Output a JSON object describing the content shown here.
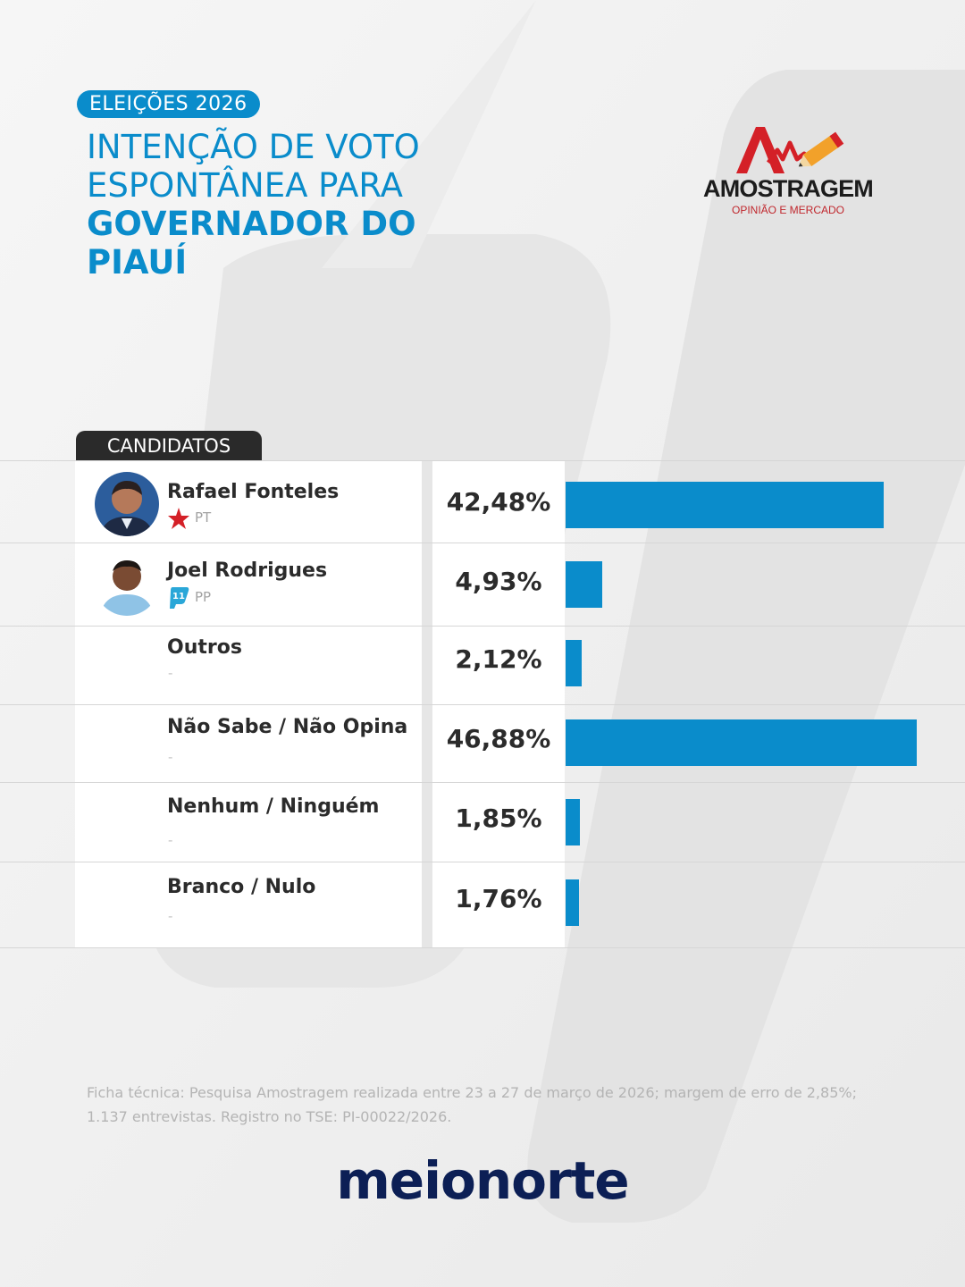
{
  "badge": "ELEIÇÕES 2026",
  "title": {
    "line1": "INTENÇÃO DE VOTO",
    "line2": "ESPONTÂNEA PARA",
    "bold": "GOVERNADOR DO PIAUÍ"
  },
  "pollster_logo": {
    "name": "AMOSTRAGEM",
    "tagline": "OPINIÃO E MERCADO",
    "icon": "pollster-logo-icon",
    "colors": {
      "accent": "#d42027",
      "pencil": "#f2a12a"
    }
  },
  "table": {
    "header": "CANDIDATOS"
  },
  "colors": {
    "bar": "#0a8ccb",
    "accent": "#0a8ccb",
    "footer_brand": "#0c1f55"
  },
  "chart_data": {
    "type": "bar",
    "orientation": "horizontal",
    "categories": [
      "Rafael Fonteles",
      "Joel Rodrigues",
      "Outros",
      "Não Sabe / Não Opina",
      "Nenhum / Ninguém",
      "Branco / Nulo"
    ],
    "values": [
      42.48,
      4.93,
      2.12,
      46.88,
      1.85,
      1.76
    ],
    "value_labels": [
      "42,48%",
      "4,93%",
      "2,12%",
      "46,88%",
      "1,85%",
      "1,76%"
    ],
    "parties": [
      "PT",
      "PP",
      "-",
      "-",
      "-",
      "-"
    ],
    "party_icons": [
      "pt-star-icon",
      "pp-11-icon",
      null,
      null,
      null,
      null
    ],
    "avatars": [
      "candidate-photo-icon",
      "candidate-photo-icon",
      null,
      null,
      null,
      null
    ],
    "grid": false
  },
  "footnote": "Ficha técnica: Pesquisa Amostragem realizada entre 23 a 27 de março de 2026; margem de erro de 2,85%; 1.137 entrevistas. Registro no TSE: PI-00022/2026.",
  "footer_brand": "meionorte"
}
